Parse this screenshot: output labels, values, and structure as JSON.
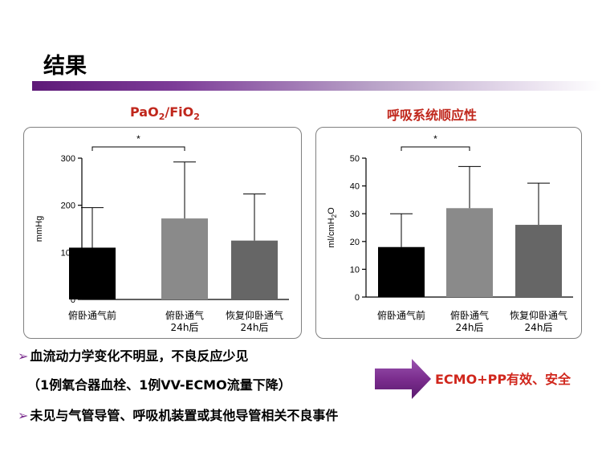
{
  "slide": {
    "title": "结果",
    "conclusion": "ECMO+PP有效、安全",
    "bullets": [
      {
        "marker": "➢",
        "text": "血流动力学变化不明显，不良反应少见"
      },
      {
        "marker": "",
        "text": "（1例氧合器血栓、1例VV-ECMO流量下降）"
      },
      {
        "marker": "➢",
        "text": "未见与气管导管、呼吸机装置或其他导管相关不良事件"
      }
    ]
  },
  "colors": {
    "title_red": "#c0271c",
    "conclusion_red": "#d0261c",
    "arrow_purple": "#7b2d8e",
    "bar_1": "#000000",
    "bar_2": "#8a8a8a",
    "bar_3": "#666666"
  },
  "chart_data": [
    {
      "type": "bar",
      "title": "PaO2/FiO2",
      "ylabel": "mmHg",
      "ylim": [
        0,
        300
      ],
      "yticks": [
        0,
        100,
        200,
        300
      ],
      "categories": [
        [
          "俯卧通气前"
        ],
        [
          "俯卧通气",
          "24h后"
        ],
        [
          "恢复仰卧通气",
          "24h后"
        ]
      ],
      "values": [
        110,
        172,
        125
      ],
      "error_upper": [
        195,
        292,
        224
      ],
      "significance": {
        "from": 0,
        "to": 1,
        "label": "*"
      }
    },
    {
      "type": "bar",
      "title": "呼吸系统顺应性",
      "ylabel": "ml/cmH2O",
      "ylim": [
        0,
        50
      ],
      "yticks": [
        0,
        10,
        20,
        30,
        40,
        50
      ],
      "categories": [
        [
          "俯卧通气前"
        ],
        [
          "俯卧通气",
          "24h后"
        ],
        [
          "恢复仰卧通气",
          "24h后"
        ]
      ],
      "values": [
        18,
        32,
        26
      ],
      "error_upper": [
        30,
        47,
        41
      ],
      "significance": {
        "from": 0,
        "to": 1,
        "label": "*"
      }
    }
  ]
}
